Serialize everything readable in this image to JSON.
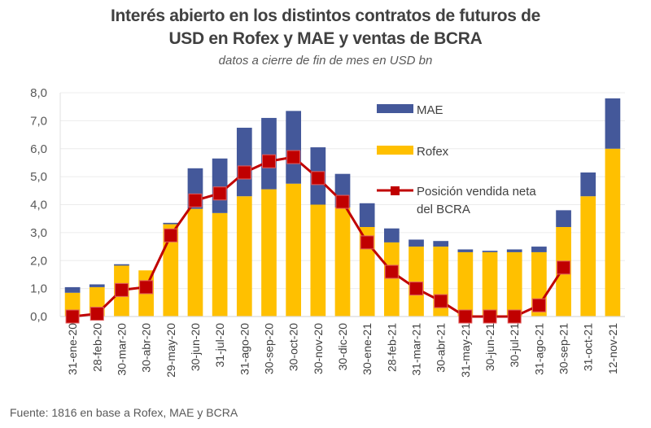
{
  "chart_data": {
    "type": "bar",
    "stacked": true,
    "title": "Interés abierto en los distintos contratos de futuros de USD en Rofex y MAE y ventas de BCRA",
    "title_lines": [
      "Interés abierto en los distintos contratos de futuros de",
      "USD en Rofex y MAE y ventas de BCRA"
    ],
    "subtitle": "datos a cierre de fin de mes en USD  bn",
    "xlabel": "",
    "ylabel": "",
    "ylim": [
      0,
      8
    ],
    "yticks": [
      0,
      1,
      2,
      3,
      4,
      5,
      6,
      7,
      8
    ],
    "ytick_labels": [
      "0,0",
      "1,0",
      "2,0",
      "3,0",
      "4,0",
      "5,0",
      "6,0",
      "7,0",
      "8,0"
    ],
    "grid": true,
    "legend_position": "top-right-inside",
    "categories": [
      "31-ene-20",
      "28-feb-20",
      "30-mar-20",
      "30-abr-20",
      "29-may-20",
      "30-jun-20",
      "31-jul-20",
      "31-ago-20",
      "30-sep-20",
      "30-oct-20",
      "30-nov-20",
      "30-dic-20",
      "30-ene-21",
      "28-feb-21",
      "31-mar-21",
      "30-abr-21",
      "31-may-21",
      "30-jun-21",
      "30-jul-21",
      "31-ago-21",
      "30-sep-21",
      "31-oct-21",
      "12-nov-21"
    ],
    "series": [
      {
        "name": "Rofex",
        "type": "bar",
        "color": "#FFC000",
        "values": [
          0.85,
          1.05,
          1.82,
          1.65,
          3.3,
          3.85,
          3.7,
          4.3,
          4.55,
          4.75,
          4.0,
          3.9,
          3.2,
          2.65,
          2.5,
          2.5,
          2.3,
          2.3,
          2.3,
          2.3,
          3.2,
          4.3,
          6.0
        ]
      },
      {
        "name": "MAE",
        "type": "bar",
        "color": "#44589A",
        "values": [
          0.2,
          0.1,
          0.05,
          0.0,
          0.05,
          1.45,
          1.95,
          2.45,
          2.55,
          2.6,
          2.05,
          1.2,
          0.85,
          0.5,
          0.25,
          0.2,
          0.1,
          0.05,
          0.1,
          0.2,
          0.6,
          0.85,
          1.8
        ]
      },
      {
        "name": "Posición vendida neta del BCRA",
        "type": "line",
        "color": "#C00000",
        "values": [
          0.0,
          0.1,
          0.95,
          1.05,
          2.9,
          4.15,
          4.4,
          5.15,
          5.55,
          5.7,
          4.95,
          4.1,
          2.65,
          1.6,
          1.0,
          0.55,
          0.0,
          0.0,
          0.0,
          0.4,
          1.75,
          null,
          null
        ]
      }
    ],
    "legend": [
      {
        "label": "MAE",
        "series": "MAE"
      },
      {
        "label": "Rofex",
        "series": "Rofex"
      },
      {
        "label_lines": [
          "Posición vendida neta",
          "del BCRA"
        ],
        "series": "Posición vendida neta del BCRA"
      }
    ],
    "source": "Fuente: 1816 en base a Rofex, MAE y BCRA"
  }
}
